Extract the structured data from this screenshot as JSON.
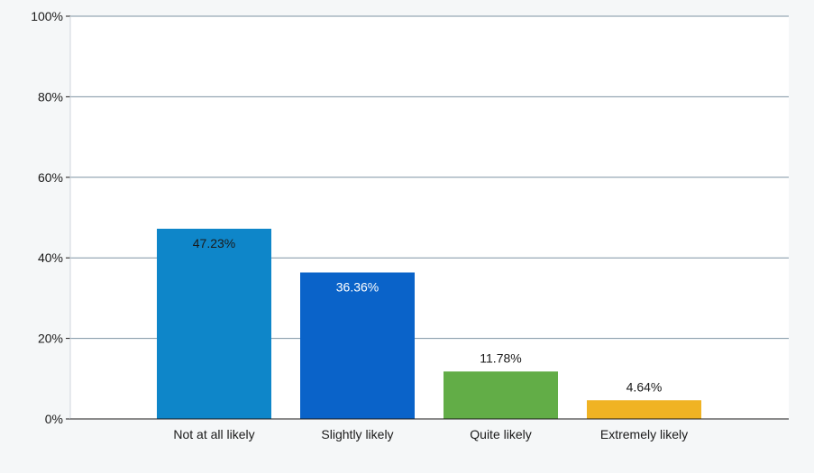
{
  "chart_data": {
    "type": "bar",
    "title": "",
    "xlabel": "",
    "ylabel": "",
    "categories": [
      "Not at all likely",
      "Slightly likely",
      "Quite likely",
      "Extremely likely"
    ],
    "values": [
      47.23,
      36.36,
      11.78,
      4.64
    ],
    "data_labels": [
      "47.23%",
      "36.36%",
      "11.78%",
      "4.64%"
    ],
    "bar_colors": [
      "#0e86c9",
      "#0a63c9",
      "#62ad47",
      "#f0b324"
    ],
    "label_colors": [
      "#1a1a1a",
      "#ffffff",
      "#1a1a1a",
      "#1a1a1a"
    ],
    "label_position": [
      "inside",
      "inside",
      "outside",
      "outside"
    ],
    "ylim": [
      0,
      100
    ],
    "yticks": [
      0,
      20,
      40,
      60,
      80,
      100
    ],
    "ytick_labels": [
      "0%",
      "20%",
      "40%",
      "60%",
      "80%",
      "100%"
    ],
    "grid": true,
    "legend": "none"
  }
}
